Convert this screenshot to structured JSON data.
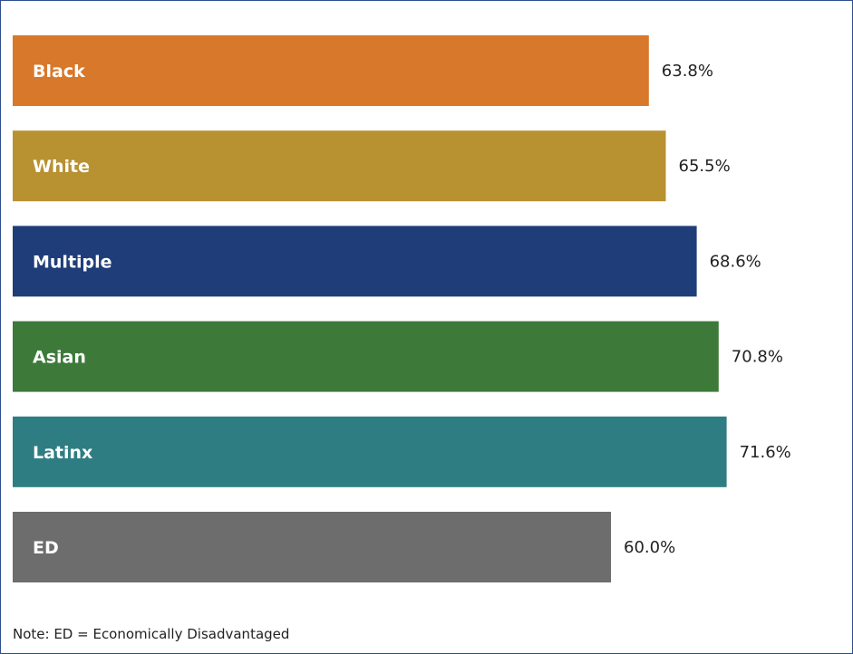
{
  "chart_data": {
    "type": "bar",
    "orientation": "horizontal",
    "categories": [
      "Black",
      "White",
      "Multiple",
      "Asian",
      "Latinx",
      "ED"
    ],
    "values": [
      63.8,
      65.5,
      68.6,
      70.8,
      71.6,
      60.0
    ],
    "value_labels": [
      "63.8%",
      "65.5%",
      "68.6%",
      "70.8%",
      "71.6%",
      "60.0%"
    ],
    "colors": [
      "#d8782b",
      "#b89131",
      "#1f3d78",
      "#3d7a3a",
      "#2e7d82",
      "#6d6d6d"
    ],
    "title": "",
    "xlabel": "",
    "ylabel": "",
    "xlim": [
      0,
      85
    ],
    "grid": false,
    "legend": "none"
  },
  "note": "Note: ED = Economically Disadvantaged"
}
